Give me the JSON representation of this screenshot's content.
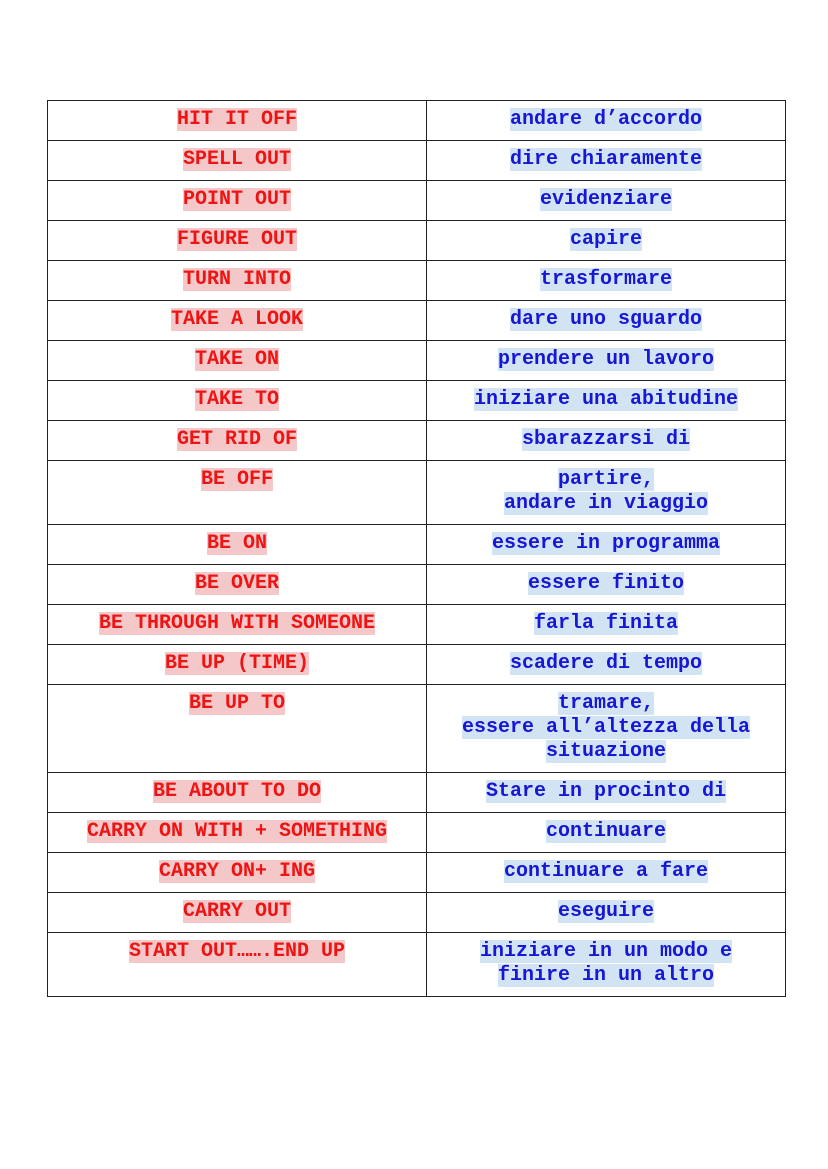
{
  "colors": {
    "english_text": "#ee1414",
    "english_highlight": "#f4c8c8",
    "italian_text": "#1616d6",
    "italian_highlight": "#d2e3f3"
  },
  "rows": [
    {
      "en": "HIT IT OFF",
      "it": "andare d’accordo"
    },
    {
      "en": "SPELL OUT",
      "it": "dire chiaramente"
    },
    {
      "en": "POINT OUT",
      "it": "evidenziare"
    },
    {
      "en": "FIGURE OUT",
      "it": "capire"
    },
    {
      "en": "TURN INTO",
      "it": "trasformare"
    },
    {
      "en": "TAKE A LOOK",
      "it": "dare uno sguardo"
    },
    {
      "en": "TAKE ON",
      "it": "prendere un lavoro"
    },
    {
      "en": "TAKE TO",
      "it": "iniziare una abitudine"
    },
    {
      "en": "GET RID OF",
      "it": "sbarazzarsi di"
    },
    {
      "en": "BE OFF",
      "it": "partire,\nandare in viaggio"
    },
    {
      "en": "BE ON",
      "it": "essere in programma"
    },
    {
      "en": "BE OVER",
      "it": "essere finito"
    },
    {
      "en": "BE THROUGH WITH SOMEONE",
      "it": "farla finita"
    },
    {
      "en": "BE UP (TIME)",
      "it": "scadere di tempo"
    },
    {
      "en": "BE UP TO",
      "it": "tramare,\nessere all’altezza della\nsituazione"
    },
    {
      "en": "BE ABOUT TO DO",
      "it": "Stare in procinto di"
    },
    {
      "en": "CARRY ON WITH + SOMETHING",
      "it": "continuare"
    },
    {
      "en": "CARRY ON+ ING",
      "it": "continuare a fare"
    },
    {
      "en": "CARRY OUT",
      "it": "eseguire"
    },
    {
      "en": "START OUT…….END UP",
      "it": "iniziare in un modo e\nfinire in un altro"
    }
  ]
}
